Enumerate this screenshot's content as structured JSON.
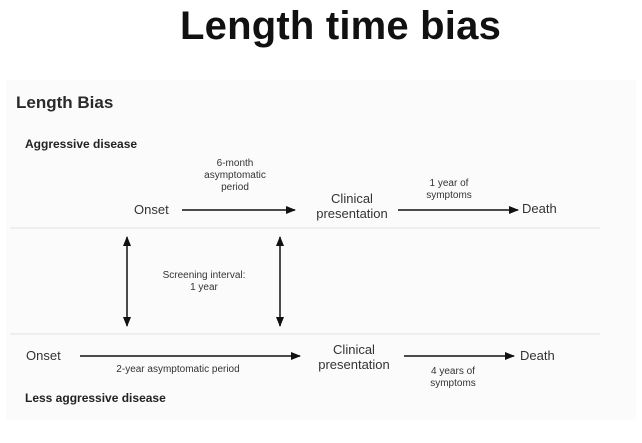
{
  "title": "Length time bias",
  "figure": {
    "subtitle": "Length Bias",
    "aggressive": {
      "heading": "Aggressive disease",
      "onset": "Onset",
      "asymptomatic_line1": "6-month",
      "asymptomatic_line2": "asymptomatic",
      "asymptomatic_line3": "period",
      "clinical_line1": "Clinical",
      "clinical_line2": "presentation",
      "symptoms_line1": "1 year of",
      "symptoms_line2": "symptoms",
      "death": "Death"
    },
    "screening": {
      "line1": "Screening interval:",
      "line2": "1 year"
    },
    "less_aggressive": {
      "heading": "Less aggressive disease",
      "onset": "Onset",
      "asymptomatic": "2-year asymptomatic period",
      "clinical_line1": "Clinical",
      "clinical_line2": "presentation",
      "symptoms_line1": "4 years of",
      "symptoms_line2": "symptoms",
      "death": "Death"
    }
  }
}
